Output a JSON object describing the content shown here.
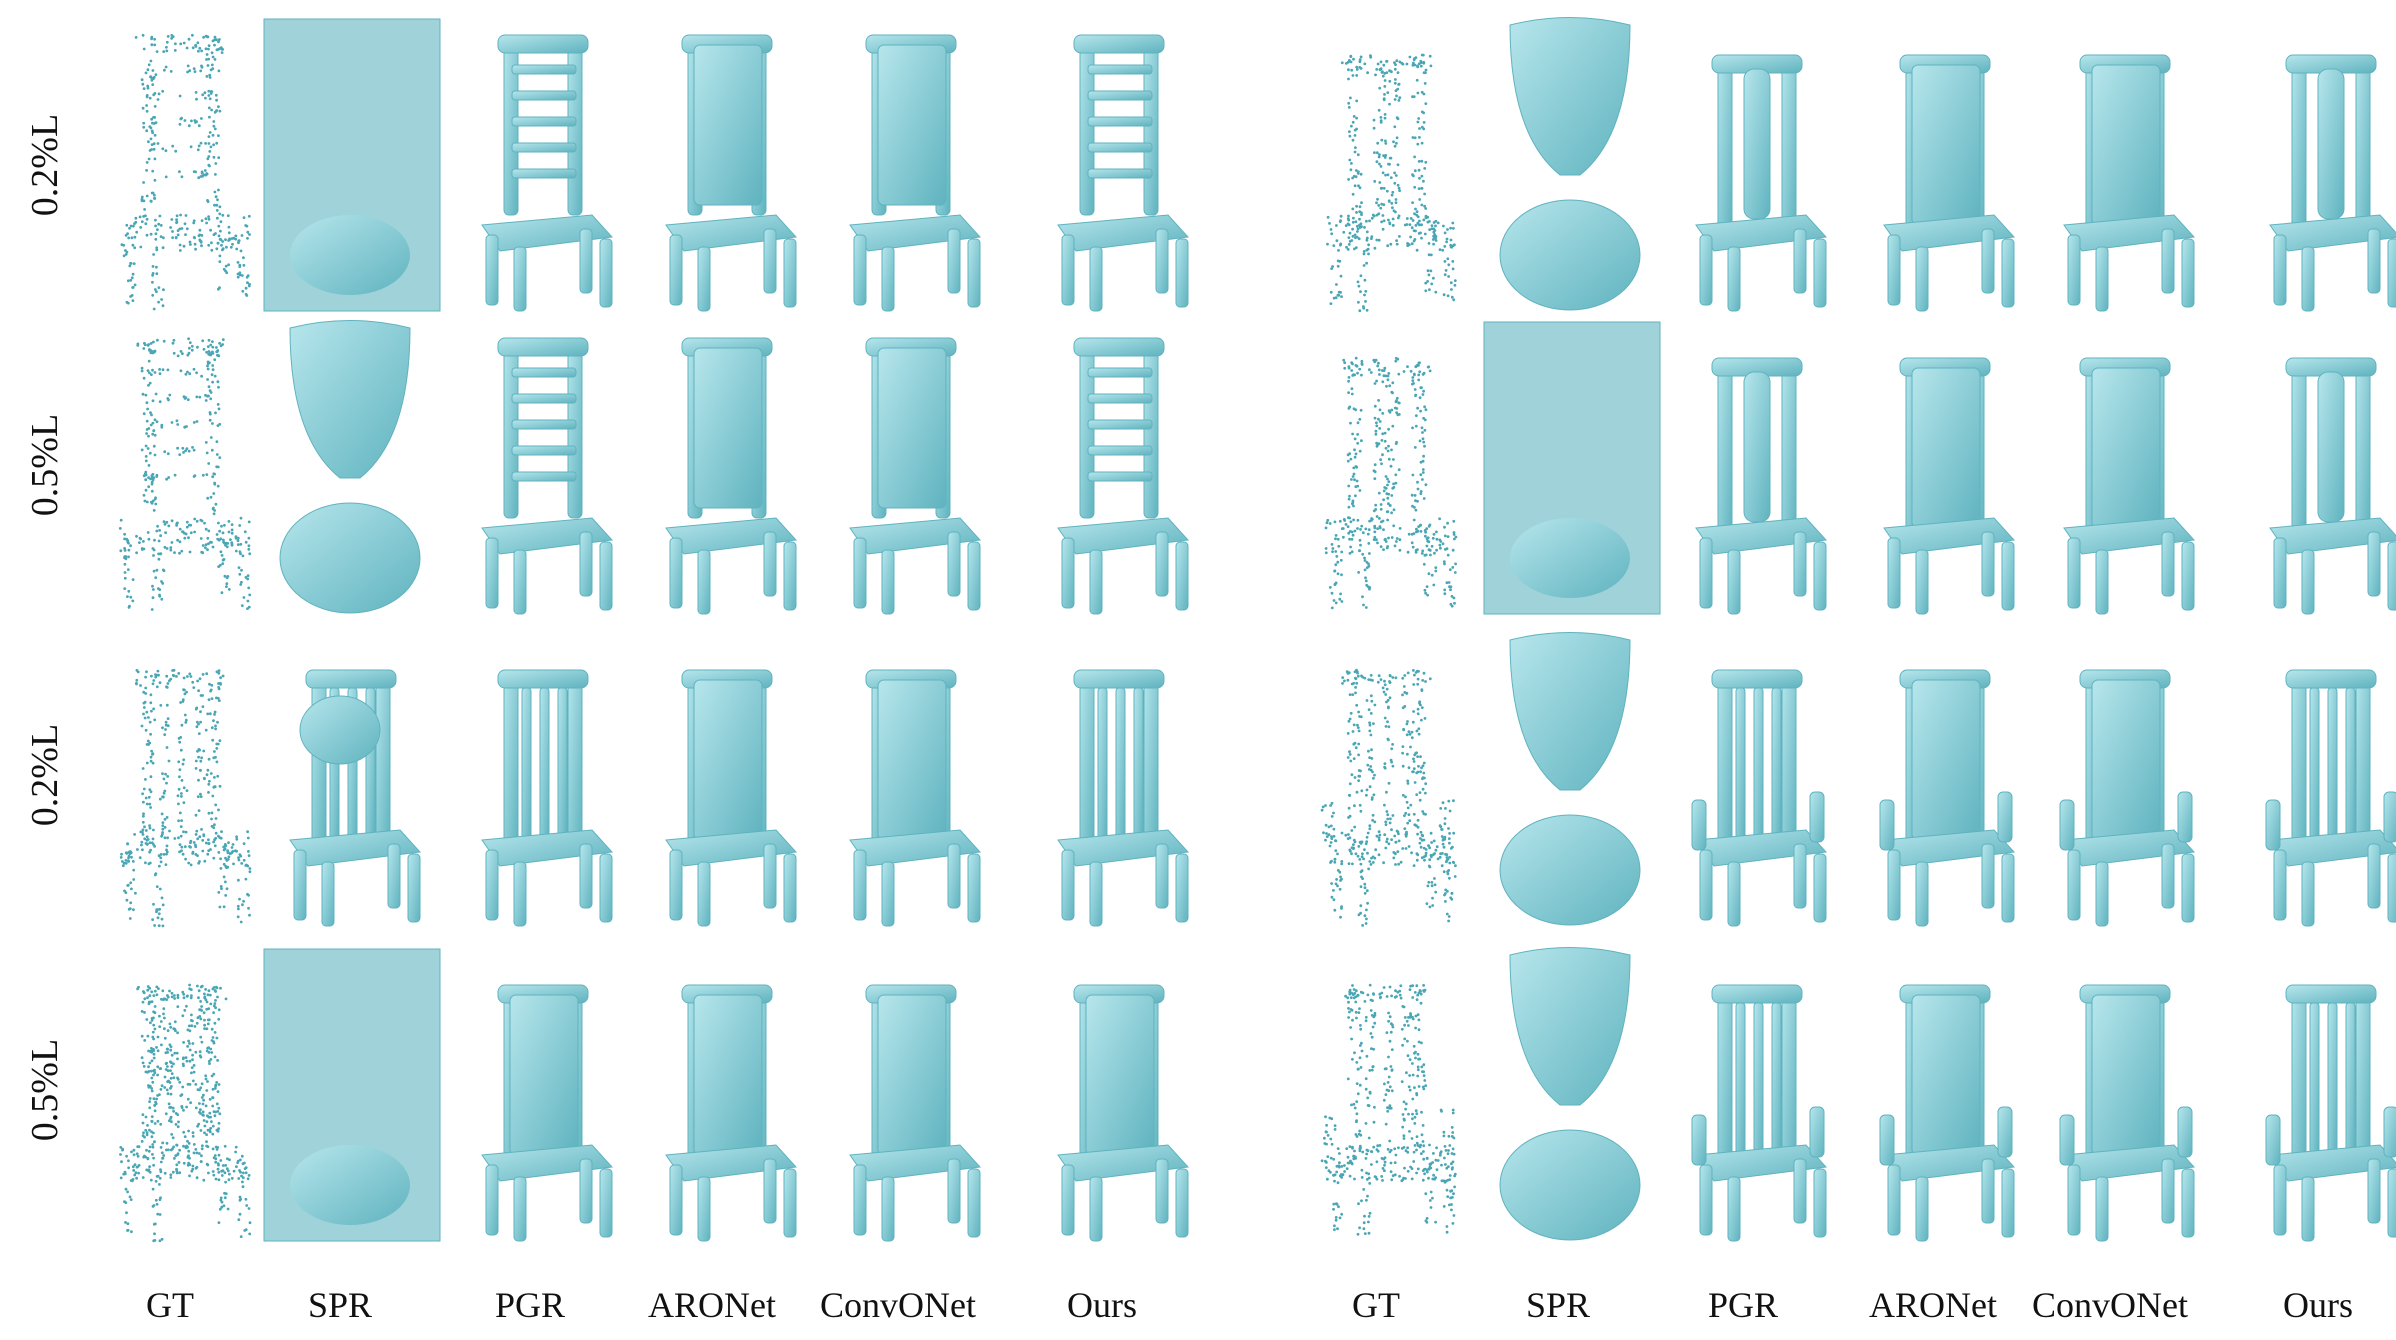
{
  "row_labels": [
    "0.2%L",
    "0.5%L",
    "0.2%L",
    "0.5%L"
  ],
  "column_labels": [
    "GT",
    "SPR",
    "PGR",
    "ARONet",
    "ConvONet",
    "Ours"
  ],
  "colors": {
    "mesh": "#8ed1db",
    "mesh_dark": "#5fb3bf",
    "mesh_light": "#b7e6ec",
    "points": "#4aa6b4",
    "background_box": "#9fd3d9"
  },
  "icons": [
    "point-cloud-chair",
    "chair-mesh",
    "spr-blob-mesh",
    "spr-box-surface"
  ]
}
